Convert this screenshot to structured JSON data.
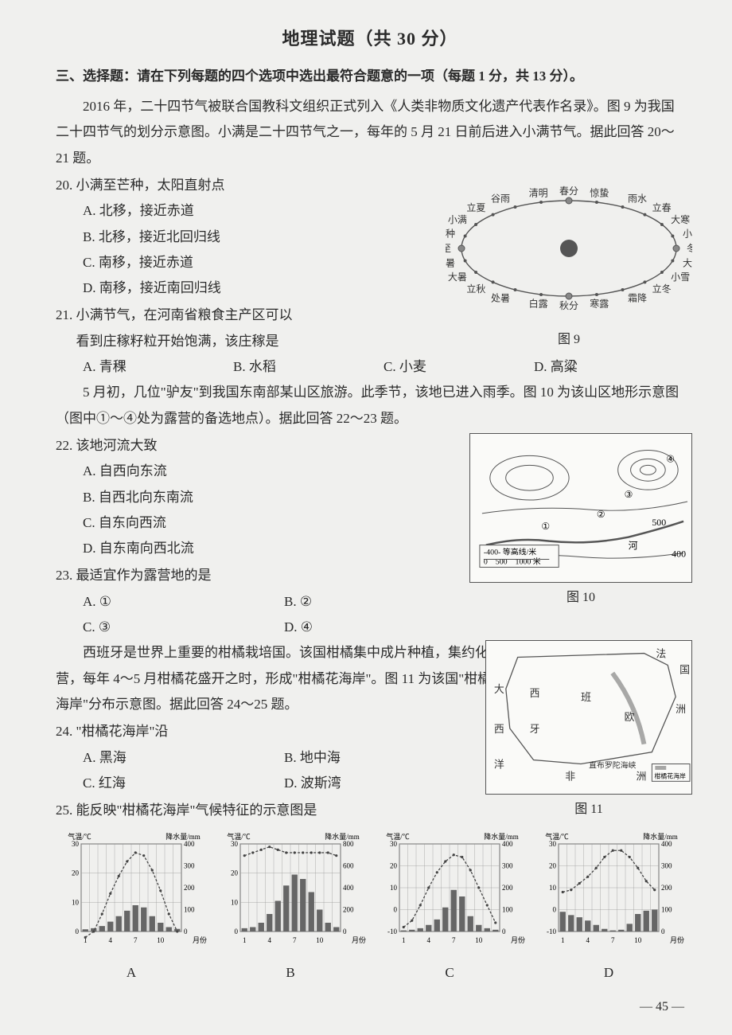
{
  "title": "地理试题（共 30 分）",
  "section3_head": "三、选择题：请在下列每题的四个选项中选出最符合题意的一项（每题 1 分，共 13 分）。",
  "intro1": "2016 年，二十四节气被联合国教科文组织正式列入《人类非物质文化遗产代表作名录》。图 9 为我国二十四节气的划分示意图。小满是二十四节气之一，每年的 5 月 21 日前后进入小满节气。据此回答 20～21 题。",
  "q20": {
    "stem": "20. 小满至芒种，太阳直射点",
    "A": "A. 北移，接近赤道",
    "B": "B. 北移，接近北回归线",
    "C": "C. 南移，接近赤道",
    "D": "D. 南移，接近南回归线"
  },
  "q21": {
    "stem1": "21. 小满节气，在河南省粮食主产区可以",
    "stem2": "看到庄稼籽粒开始饱满，该庄稼是",
    "A": "A. 青稞",
    "B": "B. 水稻",
    "C": "C. 小麦",
    "D": "D. 高粱"
  },
  "intro2": "5 月初，几位\"驴友\"到我国东南部某山区旅游。此季节，该地已进入雨季。图 10 为该山区地形示意图（图中①～④处为露营的备选地点）。据此回答 22～23 题。",
  "q22": {
    "stem": "22. 该地河流大致",
    "A": "A. 自西向东流",
    "B": "B. 自西北向东南流",
    "C": "C. 自东向西流",
    "D": "D. 自东南向西北流"
  },
  "q23": {
    "stem": "23. 最适宜作为露营地的是",
    "A": "A. ①",
    "B": "B. ②",
    "C": "C. ③",
    "D": "D. ④"
  },
  "intro3": "西班牙是世界上重要的柑橘栽培国。该国柑橘集中成片种植，集约化经营，每年 4～5 月柑橘花盛开之时，形成\"柑橘花海岸\"。图 11 为该国\"柑橘花海岸\"分布示意图。据此回答 24～25 题。",
  "q24": {
    "stem": "24. \"柑橘花海岸\"沿",
    "A": "A. 黑海",
    "B": "B. 地中海",
    "C": "C. 红海",
    "D": "D. 波斯湾"
  },
  "q25": {
    "stem": "25. 能反映\"柑橘花海岸\"气候特征的示意图是"
  },
  "fig9": {
    "caption": "图 9",
    "terms": [
      "春分",
      "惊蛰",
      "雨水",
      "立春",
      "大寒",
      "小寒",
      "冬至",
      "大雪",
      "小雪",
      "立冬",
      "霜降",
      "寒露",
      "秋分",
      "白露",
      "处暑",
      "立秋",
      "大暑",
      "小暑",
      "夏至",
      "芒种",
      "小满",
      "立夏",
      "谷雨",
      "清明"
    ]
  },
  "fig10": {
    "caption": "图 10",
    "contour_label": "-400- 等高线/米",
    "scale": "0　500　1000 米",
    "vals": [
      "400",
      "500",
      "河",
      "①",
      "②",
      "③",
      "④"
    ]
  },
  "fig11": {
    "caption": "图 11",
    "labels": {
      "fa": "法",
      "guo": "国",
      "da": "大",
      "xi": "西",
      "xi2": "西",
      "yang": "洋",
      "ban": "班",
      "ya": "牙",
      "ou": "欧",
      "zhou": "洲",
      "fei": "非",
      "zhou2": "洲",
      "strait": "直布罗陀海峡",
      "legend": "柑橘花海岸"
    }
  },
  "charts": {
    "axis_temp": "气温/℃",
    "axis_prec": "降水量/mm",
    "xaxis": [
      "1",
      "4",
      "7",
      "10",
      "月份"
    ],
    "A": {
      "label": "A",
      "temp_ticks": [
        0,
        10,
        20,
        30
      ],
      "prec_ticks": [
        0,
        100,
        200,
        300,
        400
      ],
      "temp": [
        -2,
        0,
        6,
        13,
        19,
        24,
        27,
        26,
        21,
        14,
        6,
        0
      ],
      "prec": [
        10,
        15,
        25,
        45,
        70,
        95,
        120,
        110,
        70,
        40,
        20,
        12
      ],
      "temp_color": "#444",
      "bar_color": "#666",
      "grid": "#999"
    },
    "B": {
      "label": "B",
      "temp_ticks": [
        0,
        10,
        20,
        30
      ],
      "prec_ticks": [
        0,
        200,
        400,
        600,
        800
      ],
      "temp": [
        26,
        27,
        28,
        29,
        28,
        27,
        27,
        27,
        27,
        27,
        27,
        26
      ],
      "prec": [
        30,
        40,
        80,
        160,
        280,
        420,
        520,
        480,
        360,
        200,
        80,
        40
      ],
      "temp_color": "#444",
      "bar_color": "#666",
      "grid": "#999"
    },
    "C": {
      "label": "C",
      "temp_ticks": [
        -10,
        0,
        10,
        20,
        30
      ],
      "prec_ticks": [
        0,
        100,
        200,
        300,
        400
      ],
      "temp": [
        -8,
        -5,
        2,
        10,
        17,
        22,
        25,
        24,
        18,
        10,
        2,
        -6
      ],
      "prec": [
        5,
        8,
        15,
        30,
        55,
        110,
        190,
        160,
        70,
        30,
        15,
        8
      ],
      "temp_color": "#444",
      "bar_color": "#666",
      "grid": "#999"
    },
    "D": {
      "label": "D",
      "temp_ticks": [
        -10,
        0,
        10,
        20,
        30
      ],
      "prec_ticks": [
        0,
        100,
        200,
        300,
        400
      ],
      "temp": [
        8,
        9,
        12,
        15,
        19,
        24,
        27,
        27,
        24,
        19,
        13,
        9
      ],
      "prec": [
        90,
        75,
        65,
        50,
        30,
        12,
        5,
        8,
        35,
        80,
        95,
        100
      ],
      "temp_color": "#444",
      "bar_color": "#666",
      "grid": "#999"
    }
  },
  "pagenum": "— 45 —",
  "colors": {
    "text": "#2a2a2a",
    "bg": "#f0f0ee",
    "border": "#555",
    "grid": "#999"
  }
}
